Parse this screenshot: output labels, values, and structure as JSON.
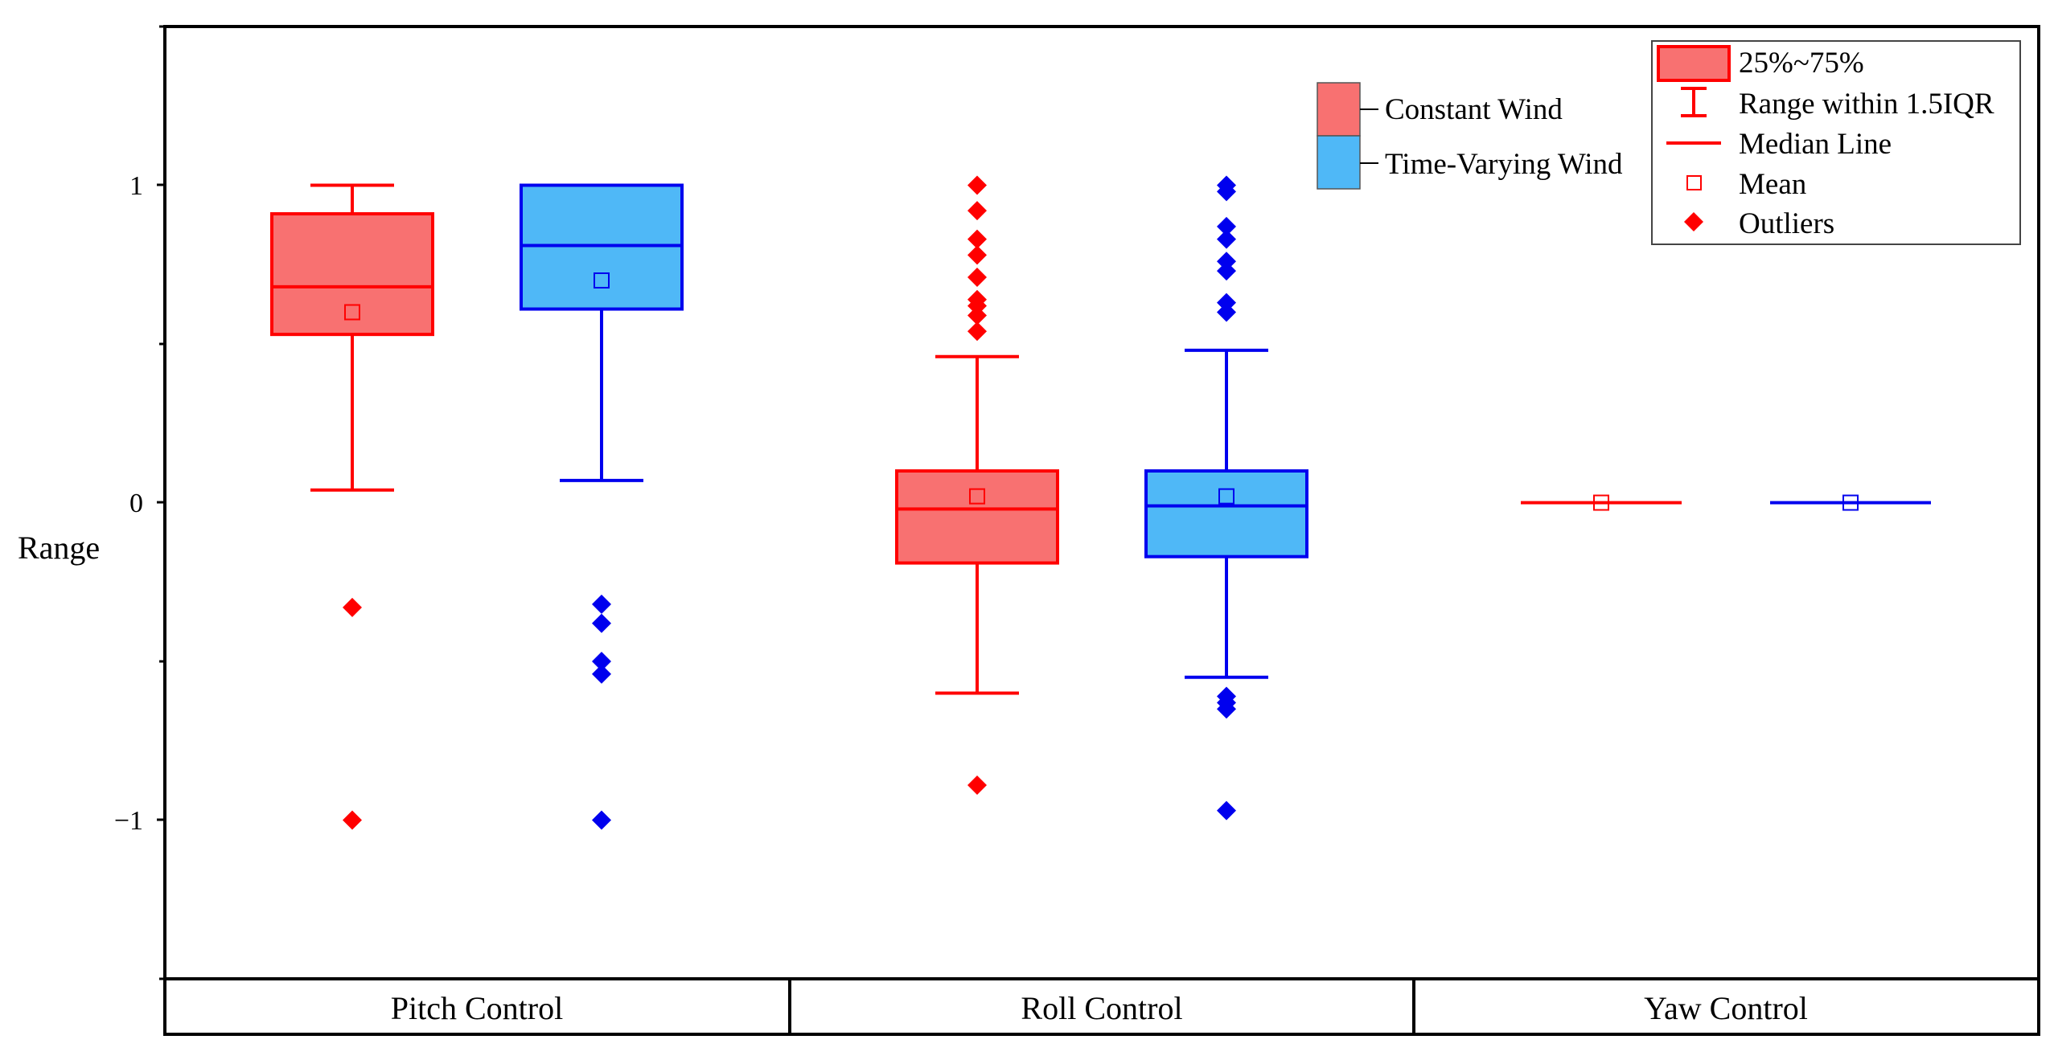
{
  "chart_data": {
    "type": "box",
    "title": "",
    "xlabel": "",
    "ylabel": "Range",
    "ylim": [
      -1.5,
      1.5
    ],
    "yticks": [
      -1,
      0,
      1
    ],
    "ytick_labels": [
      "−1",
      "0",
      "1"
    ],
    "categories": [
      "Pitch Control",
      "Roll Control",
      "Yaw Control"
    ],
    "series": [
      {
        "name": "Constant Wind",
        "fill": "#F87171",
        "edge": "#FF0000",
        "boxes": [
          {
            "category": "Pitch Control",
            "q1": 0.53,
            "median": 0.68,
            "q3": 0.91,
            "whisker_low": 0.04,
            "whisker_high": 1.0,
            "mean": 0.6,
            "outliers": [
              -0.33,
              -1.0
            ]
          },
          {
            "category": "Roll Control",
            "q1": -0.19,
            "median": -0.02,
            "q3": 0.1,
            "whisker_low": -0.6,
            "whisker_high": 0.46,
            "mean": 0.02,
            "outliers": [
              1.0,
              0.92,
              0.83,
              0.78,
              0.71,
              0.64,
              0.62,
              0.59,
              0.54,
              -0.89
            ]
          },
          {
            "category": "Yaw Control",
            "q1": 0.0,
            "median": 0.0,
            "q3": 0.0,
            "whisker_low": 0.0,
            "whisker_high": 0.0,
            "mean": 0.0,
            "outliers": []
          }
        ]
      },
      {
        "name": "Time-Varying Wind",
        "fill": "#4FB8F7",
        "edge": "#0000EE",
        "boxes": [
          {
            "category": "Pitch Control",
            "q1": 0.61,
            "median": 0.81,
            "q3": 1.0,
            "whisker_low": 0.07,
            "whisker_high": 1.0,
            "mean": 0.7,
            "outliers": [
              -0.32,
              -0.38,
              -0.5,
              -0.54,
              -1.0
            ]
          },
          {
            "category": "Roll Control",
            "q1": -0.17,
            "median": -0.01,
            "q3": 0.1,
            "whisker_low": -0.55,
            "whisker_high": 0.48,
            "mean": 0.02,
            "outliers": [
              1.0,
              0.98,
              0.87,
              0.83,
              0.76,
              0.73,
              0.63,
              0.6,
              -0.61,
              -0.63,
              -0.65,
              -0.97
            ]
          },
          {
            "category": "Yaw Control",
            "q1": 0.0,
            "median": 0.0,
            "q3": 0.0,
            "whisker_low": 0.0,
            "whisker_high": 0.0,
            "mean": 0.0,
            "outliers": []
          }
        ]
      }
    ],
    "legend_series": {
      "placement": "top-center",
      "entries": [
        "Constant Wind",
        "Time-Varying Wind"
      ]
    },
    "legend_symbols": {
      "placement": "top-right",
      "entries": [
        "25%~75%",
        "Range within 1.5IQR",
        "Median Line",
        "Mean",
        "Outliers"
      ]
    }
  }
}
